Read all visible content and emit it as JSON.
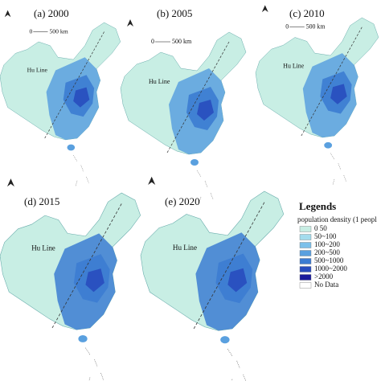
{
  "panels": [
    {
      "label": "(a) 2000",
      "scale_start": "0",
      "scale_end": "500 km",
      "hu_line": "Hu Line"
    },
    {
      "label": "(b) 2005",
      "scale_start": "0",
      "scale_end": "500 km",
      "hu_line": "Hu Line"
    },
    {
      "label": "(c) 2010",
      "scale_start": "0",
      "scale_end": "500 km",
      "hu_line": "Hu Line"
    },
    {
      "label": "(d) 2015",
      "hu_line": "Hu Line"
    },
    {
      "label": "(e) 2020",
      "hu_line": "Hu Line"
    }
  ],
  "legend": {
    "title": "Legends",
    "subtitle": "population density (1 peopl",
    "items": [
      {
        "label": "0  50",
        "color": "#c8eee4"
      },
      {
        "label": "50~100",
        "color": "#a3dced"
      },
      {
        "label": "100~200",
        "color": "#7cc0ea"
      },
      {
        "label": "200~500",
        "color": "#5aa0df"
      },
      {
        "label": "500~1000",
        "color": "#3c7cd2"
      },
      {
        "label": "1000~2000",
        "color": "#284cbe"
      },
      {
        "label": ">2000",
        "color": "#1a1a9c"
      },
      {
        "label": "No Data",
        "color": "#ffffff"
      }
    ]
  }
}
